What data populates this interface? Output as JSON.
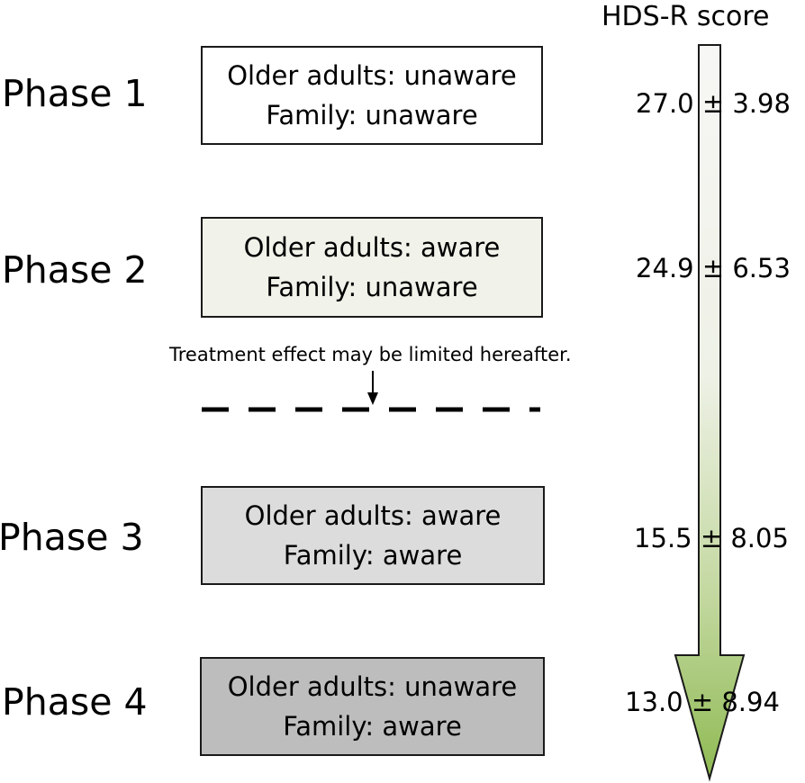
{
  "score_title": "HDS-R score",
  "phases": [
    {
      "label": "Phase 1",
      "line1": "Older adults: unaware",
      "line2": "Family: unaware",
      "score": "27.0 ± 3.98",
      "fill": "#ffffff"
    },
    {
      "label": "Phase 2",
      "line1": "Older adults: aware",
      "line2": "Family: unaware",
      "score": "24.9 ± 6.53",
      "fill": "#f1f2e9"
    },
    {
      "label": "Phase 3",
      "line1": "Older adults: aware",
      "line2": "Family: aware",
      "score": "15.5 ± 8.05",
      "fill": "#dcdcdc"
    },
    {
      "label": "Phase 4",
      "line1": "Older adults: unaware",
      "line2": "Family: aware",
      "score": "13.0 ± 8.94",
      "fill": "#bdbdbd"
    }
  ],
  "note": "Treatment effect may be limited hereafter.",
  "colors": {
    "arrow_top": "#f5f5f3",
    "arrow_bottom": "#8fba53",
    "border": "#1a1a1a"
  }
}
